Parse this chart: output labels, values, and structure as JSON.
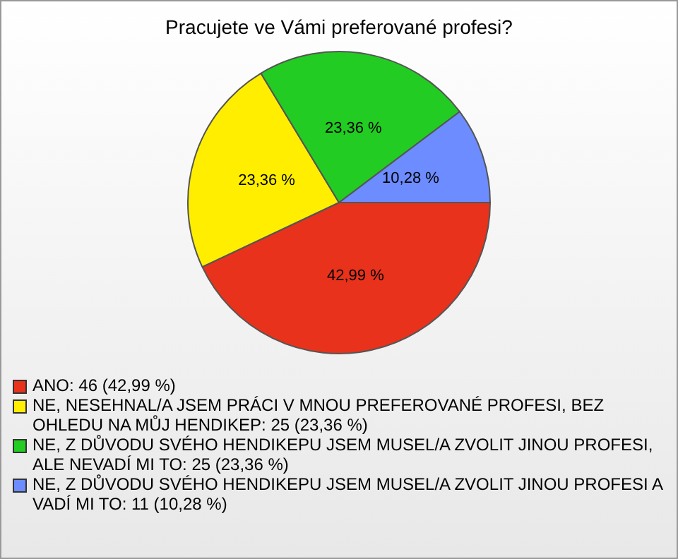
{
  "chart_data": {
    "type": "pie",
    "title": "Pracujete ve Vámi preferované profesi?",
    "categories": [
      "ANO: 46 (42,99 %)",
      "NE, NESEHNAL/A JSEM PRÁCI V MNOU PREFEROVANÉ PROFESI, BEZ OHLEDU NA MŮJ HENDIKEP: 25 (23,36 %)",
      "NE, Z DŮVODU SVÉHO HENDIKEPU JSEM MUSEL/A ZVOLIT JINOU PROFESI, ALE NEVADÍ MI TO: 25 (23,36 %)",
      "NE, Z DŮVODU SVÉHO HENDIKEPU JSEM MUSEL/A ZVOLIT JINOU PROFESI A VADÍ MI TO: 11 (10,28 %)"
    ],
    "values": [
      42.99,
      23.36,
      23.36,
      10.28
    ],
    "colors": [
      "#e8321c",
      "#ffee00",
      "#22cc22",
      "#6c8cff"
    ],
    "value_labels": [
      "42,99 %",
      "23,36 %",
      "23,36 %",
      "10,28 %"
    ],
    "legend": "bottom"
  }
}
